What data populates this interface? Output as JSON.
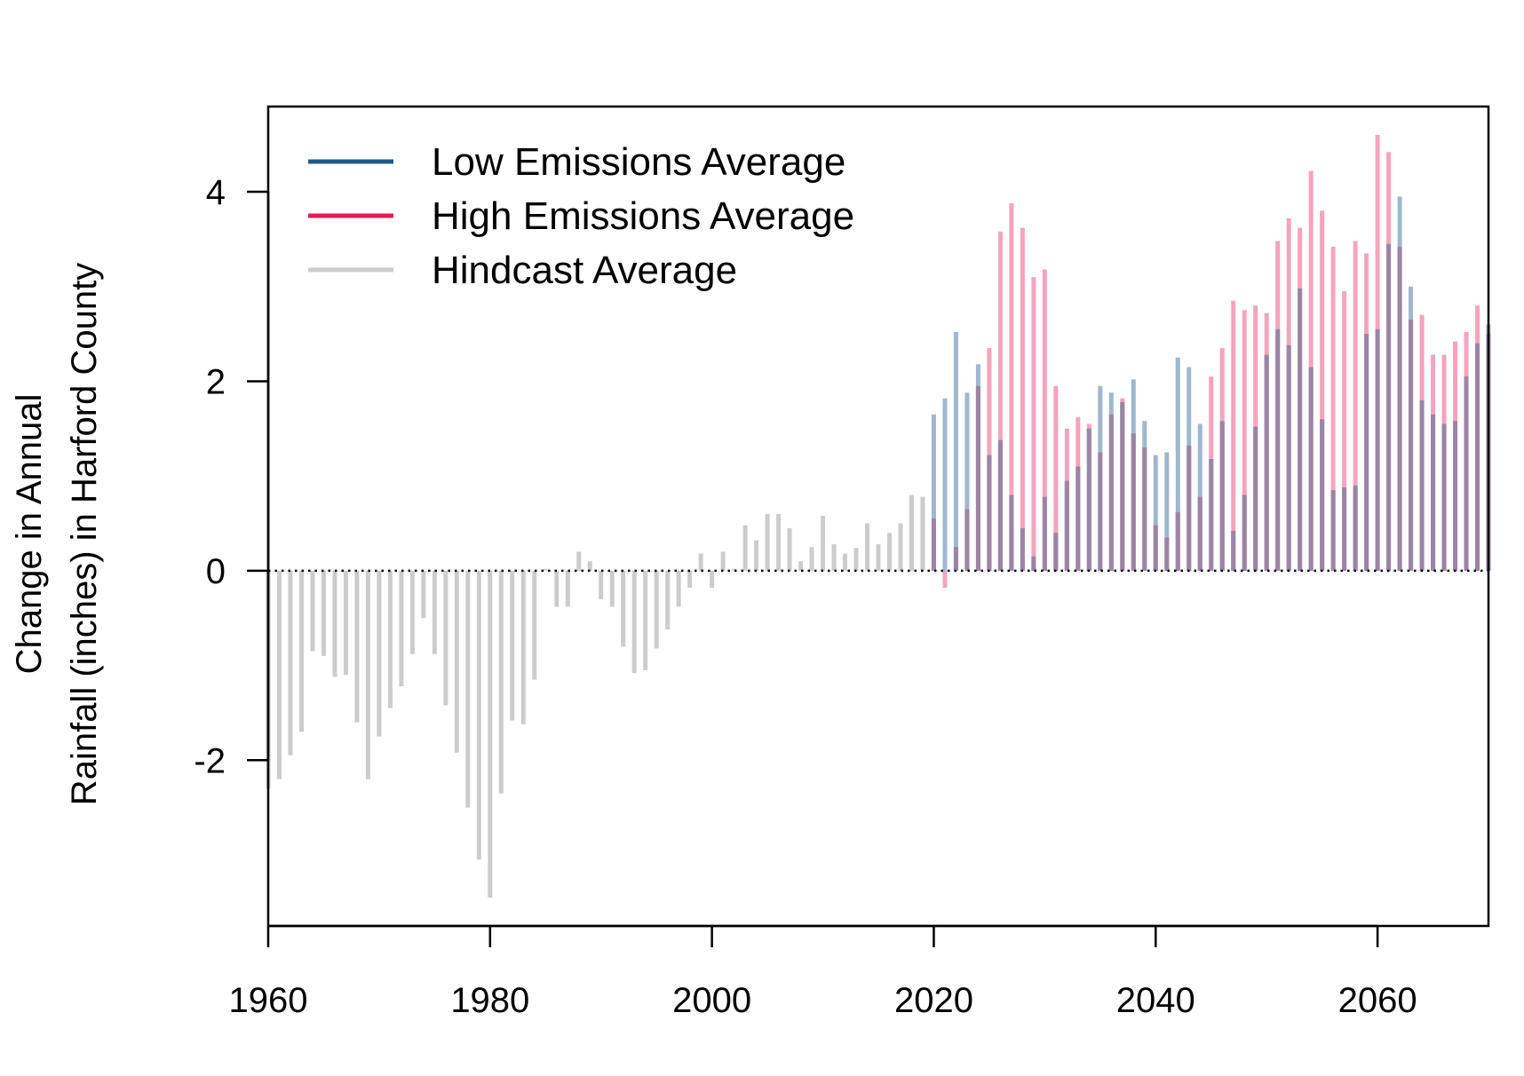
{
  "chart_data": {
    "type": "bar",
    "title": "",
    "xlabel": "",
    "ylabel_lines": [
      "Change in Annual",
      "Rainfall (inches) in Harford County"
    ],
    "xlim": [
      1960,
      2070
    ],
    "ylim": [
      -3.75,
      4.9
    ],
    "x_ticks": [
      1960,
      1980,
      2000,
      2020,
      2040,
      2060
    ],
    "y_ticks": [
      -2,
      0,
      2,
      4
    ],
    "x_tick_labels": [
      "1960",
      "1980",
      "2000",
      "2020",
      "2040",
      "2060"
    ],
    "y_tick_labels": [
      "-2",
      "0",
      "2",
      "4"
    ],
    "grid": false,
    "reference_line": {
      "y": 0,
      "style": "dotted"
    },
    "legend": {
      "position": "top-left",
      "entries": [
        "Low Emissions Average",
        "High Emissions Average",
        "Hindcast Average"
      ]
    },
    "colors": {
      "low": "#1f5a8a",
      "low_bar": "#9db8cf",
      "high": "#e8195a",
      "high_bar": "#f6a3bc",
      "overlap_bar": "#9a85a5",
      "hindcast": "#cccccc"
    },
    "series": [
      {
        "name": "Hindcast Average",
        "x": [
          1960,
          1961,
          1962,
          1963,
          1964,
          1965,
          1966,
          1967,
          1968,
          1969,
          1970,
          1971,
          1972,
          1973,
          1974,
          1975,
          1976,
          1977,
          1978,
          1979,
          1980,
          1981,
          1982,
          1983,
          1984,
          1985,
          1986,
          1987,
          1988,
          1989,
          1990,
          1991,
          1992,
          1993,
          1994,
          1995,
          1996,
          1997,
          1998,
          1999,
          2000,
          2001,
          2002,
          2003,
          2004,
          2005,
          2006,
          2007,
          2008,
          2009,
          2010,
          2011,
          2012,
          2013,
          2014,
          2015,
          2016,
          2017,
          2018,
          2019
        ],
        "values": [
          -2.3,
          -2.2,
          -1.95,
          -1.7,
          -0.85,
          -0.9,
          -1.12,
          -1.1,
          -1.6,
          -2.2,
          -1.75,
          -1.45,
          -1.22,
          -0.88,
          -0.5,
          -0.88,
          -1.42,
          -1.92,
          -2.5,
          -3.05,
          -3.45,
          -2.35,
          -1.58,
          -1.62,
          -1.15,
          0.02,
          -0.38,
          -0.38,
          0.2,
          0.1,
          -0.3,
          -0.38,
          -0.8,
          -1.08,
          -1.05,
          -0.82,
          -0.62,
          -0.38,
          -0.18,
          0.18,
          -0.18,
          0.2,
          0.02,
          0.48,
          0.32,
          0.6,
          0.6,
          0.45,
          0.1,
          0.25,
          0.58,
          0.28,
          0.18,
          0.24,
          0.5,
          0.28,
          0.4,
          0.5,
          0.8,
          0.78
        ]
      },
      {
        "name": "Low Emissions Average",
        "x": [
          2020,
          2021,
          2022,
          2023,
          2024,
          2025,
          2026,
          2027,
          2028,
          2029,
          2030,
          2031,
          2032,
          2033,
          2034,
          2035,
          2036,
          2037,
          2038,
          2039,
          2040,
          2041,
          2042,
          2043,
          2044,
          2045,
          2046,
          2047,
          2048,
          2049,
          2050,
          2051,
          2052,
          2053,
          2054,
          2055,
          2056,
          2057,
          2058,
          2059,
          2060,
          2061,
          2062,
          2063,
          2064,
          2065,
          2066,
          2067,
          2068,
          2069,
          2070
        ],
        "values": [
          1.65,
          1.82,
          2.52,
          1.88,
          2.18,
          1.22,
          1.38,
          0.8,
          0.45,
          0.15,
          0.78,
          0.4,
          0.95,
          1.1,
          1.5,
          1.95,
          1.88,
          1.78,
          2.02,
          1.58,
          1.22,
          1.25,
          2.25,
          2.15,
          1.55,
          1.18,
          1.58,
          0.42,
          0.8,
          1.52,
          2.28,
          2.55,
          2.38,
          2.98,
          2.15,
          1.6,
          0.85,
          0.88,
          0.9,
          2.5,
          2.55,
          3.45,
          3.95,
          3.0,
          1.8,
          1.65,
          1.55,
          1.58,
          2.05,
          2.4,
          2.6
        ]
      },
      {
        "name": "High Emissions Average",
        "x": [
          2020,
          2021,
          2022,
          2023,
          2024,
          2025,
          2026,
          2027,
          2028,
          2029,
          2030,
          2031,
          2032,
          2033,
          2034,
          2035,
          2036,
          2037,
          2038,
          2039,
          2040,
          2041,
          2042,
          2043,
          2044,
          2045,
          2046,
          2047,
          2048,
          2049,
          2050,
          2051,
          2052,
          2053,
          2054,
          2055,
          2056,
          2057,
          2058,
          2059,
          2060,
          2061,
          2062,
          2063,
          2064,
          2065,
          2066,
          2067,
          2068,
          2069,
          2070
        ],
        "values": [
          0.55,
          -0.18,
          0.25,
          0.65,
          1.95,
          2.35,
          3.58,
          3.88,
          3.62,
          3.1,
          3.18,
          1.95,
          1.5,
          1.62,
          1.55,
          1.25,
          1.65,
          1.82,
          1.45,
          1.3,
          0.48,
          0.35,
          0.62,
          1.32,
          0.78,
          2.05,
          2.35,
          2.85,
          2.75,
          2.8,
          2.72,
          3.48,
          3.72,
          3.62,
          4.22,
          3.8,
          3.42,
          2.95,
          3.48,
          3.35,
          4.6,
          4.42,
          3.42,
          2.65,
          2.7,
          2.28,
          2.28,
          2.42,
          2.52,
          2.8,
          2.5
        ]
      }
    ]
  }
}
